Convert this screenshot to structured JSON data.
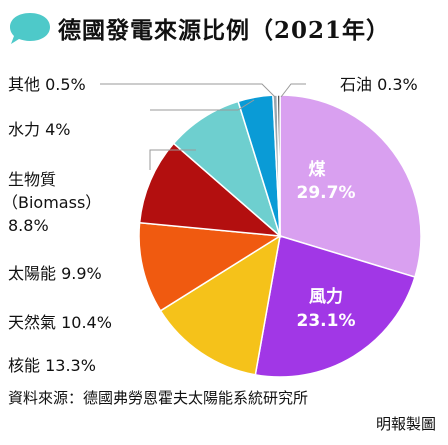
{
  "title": "德國發電來源比例（2021年）",
  "source": "資料來源：德國弗勞恩霍夫太陽能系統研究所",
  "credit": "明報製圖",
  "colors": {
    "title_bubble": "#4ec9c9"
  },
  "chart_data": {
    "type": "pie",
    "title": "德國發電來源比例（2021年）",
    "slices": [
      {
        "name": "煤",
        "value": 29.7,
        "label": "29.7%",
        "color": "#d9a0f0"
      },
      {
        "name": "風力",
        "value": 23.1,
        "label": "23.1%",
        "color": "#a137e6"
      },
      {
        "name": "核能",
        "value": 13.3,
        "label": "13.3%",
        "color": "#f5c21a"
      },
      {
        "name": "天然氣",
        "value": 10.4,
        "label": "10.4%",
        "color": "#f05a10"
      },
      {
        "name": "太陽能",
        "value": 9.9,
        "label": "9.9%",
        "color": "#b30f0f"
      },
      {
        "name": "生物質（Biomass）",
        "value": 8.8,
        "label": "8.8%",
        "color": "#6ecfcf"
      },
      {
        "name": "水力",
        "value": 4,
        "label": "4%",
        "color": "#0a9bd6"
      },
      {
        "name": "其他",
        "value": 0.5,
        "label": "0.5%",
        "color": "#9aa6ae"
      },
      {
        "name": "石油",
        "value": 0.3,
        "label": "0.3%",
        "color": "#3a3a3a"
      }
    ],
    "outside_labels": {
      "oil": "石油 0.3%",
      "other": "其他 0.5%",
      "hydro": "水力 4%",
      "bio_line1": "生物質",
      "bio_line2": "（Biomass）",
      "bio_line3": "8.8%",
      "solar": "太陽能 9.9%",
      "gas": "天然氣 10.4%",
      "nuclear": "核能 13.3%"
    },
    "inside_labels": {
      "coal_name": "煤",
      "coal_value": "29.7%",
      "wind_name": "風力",
      "wind_value": "23.1%"
    }
  }
}
